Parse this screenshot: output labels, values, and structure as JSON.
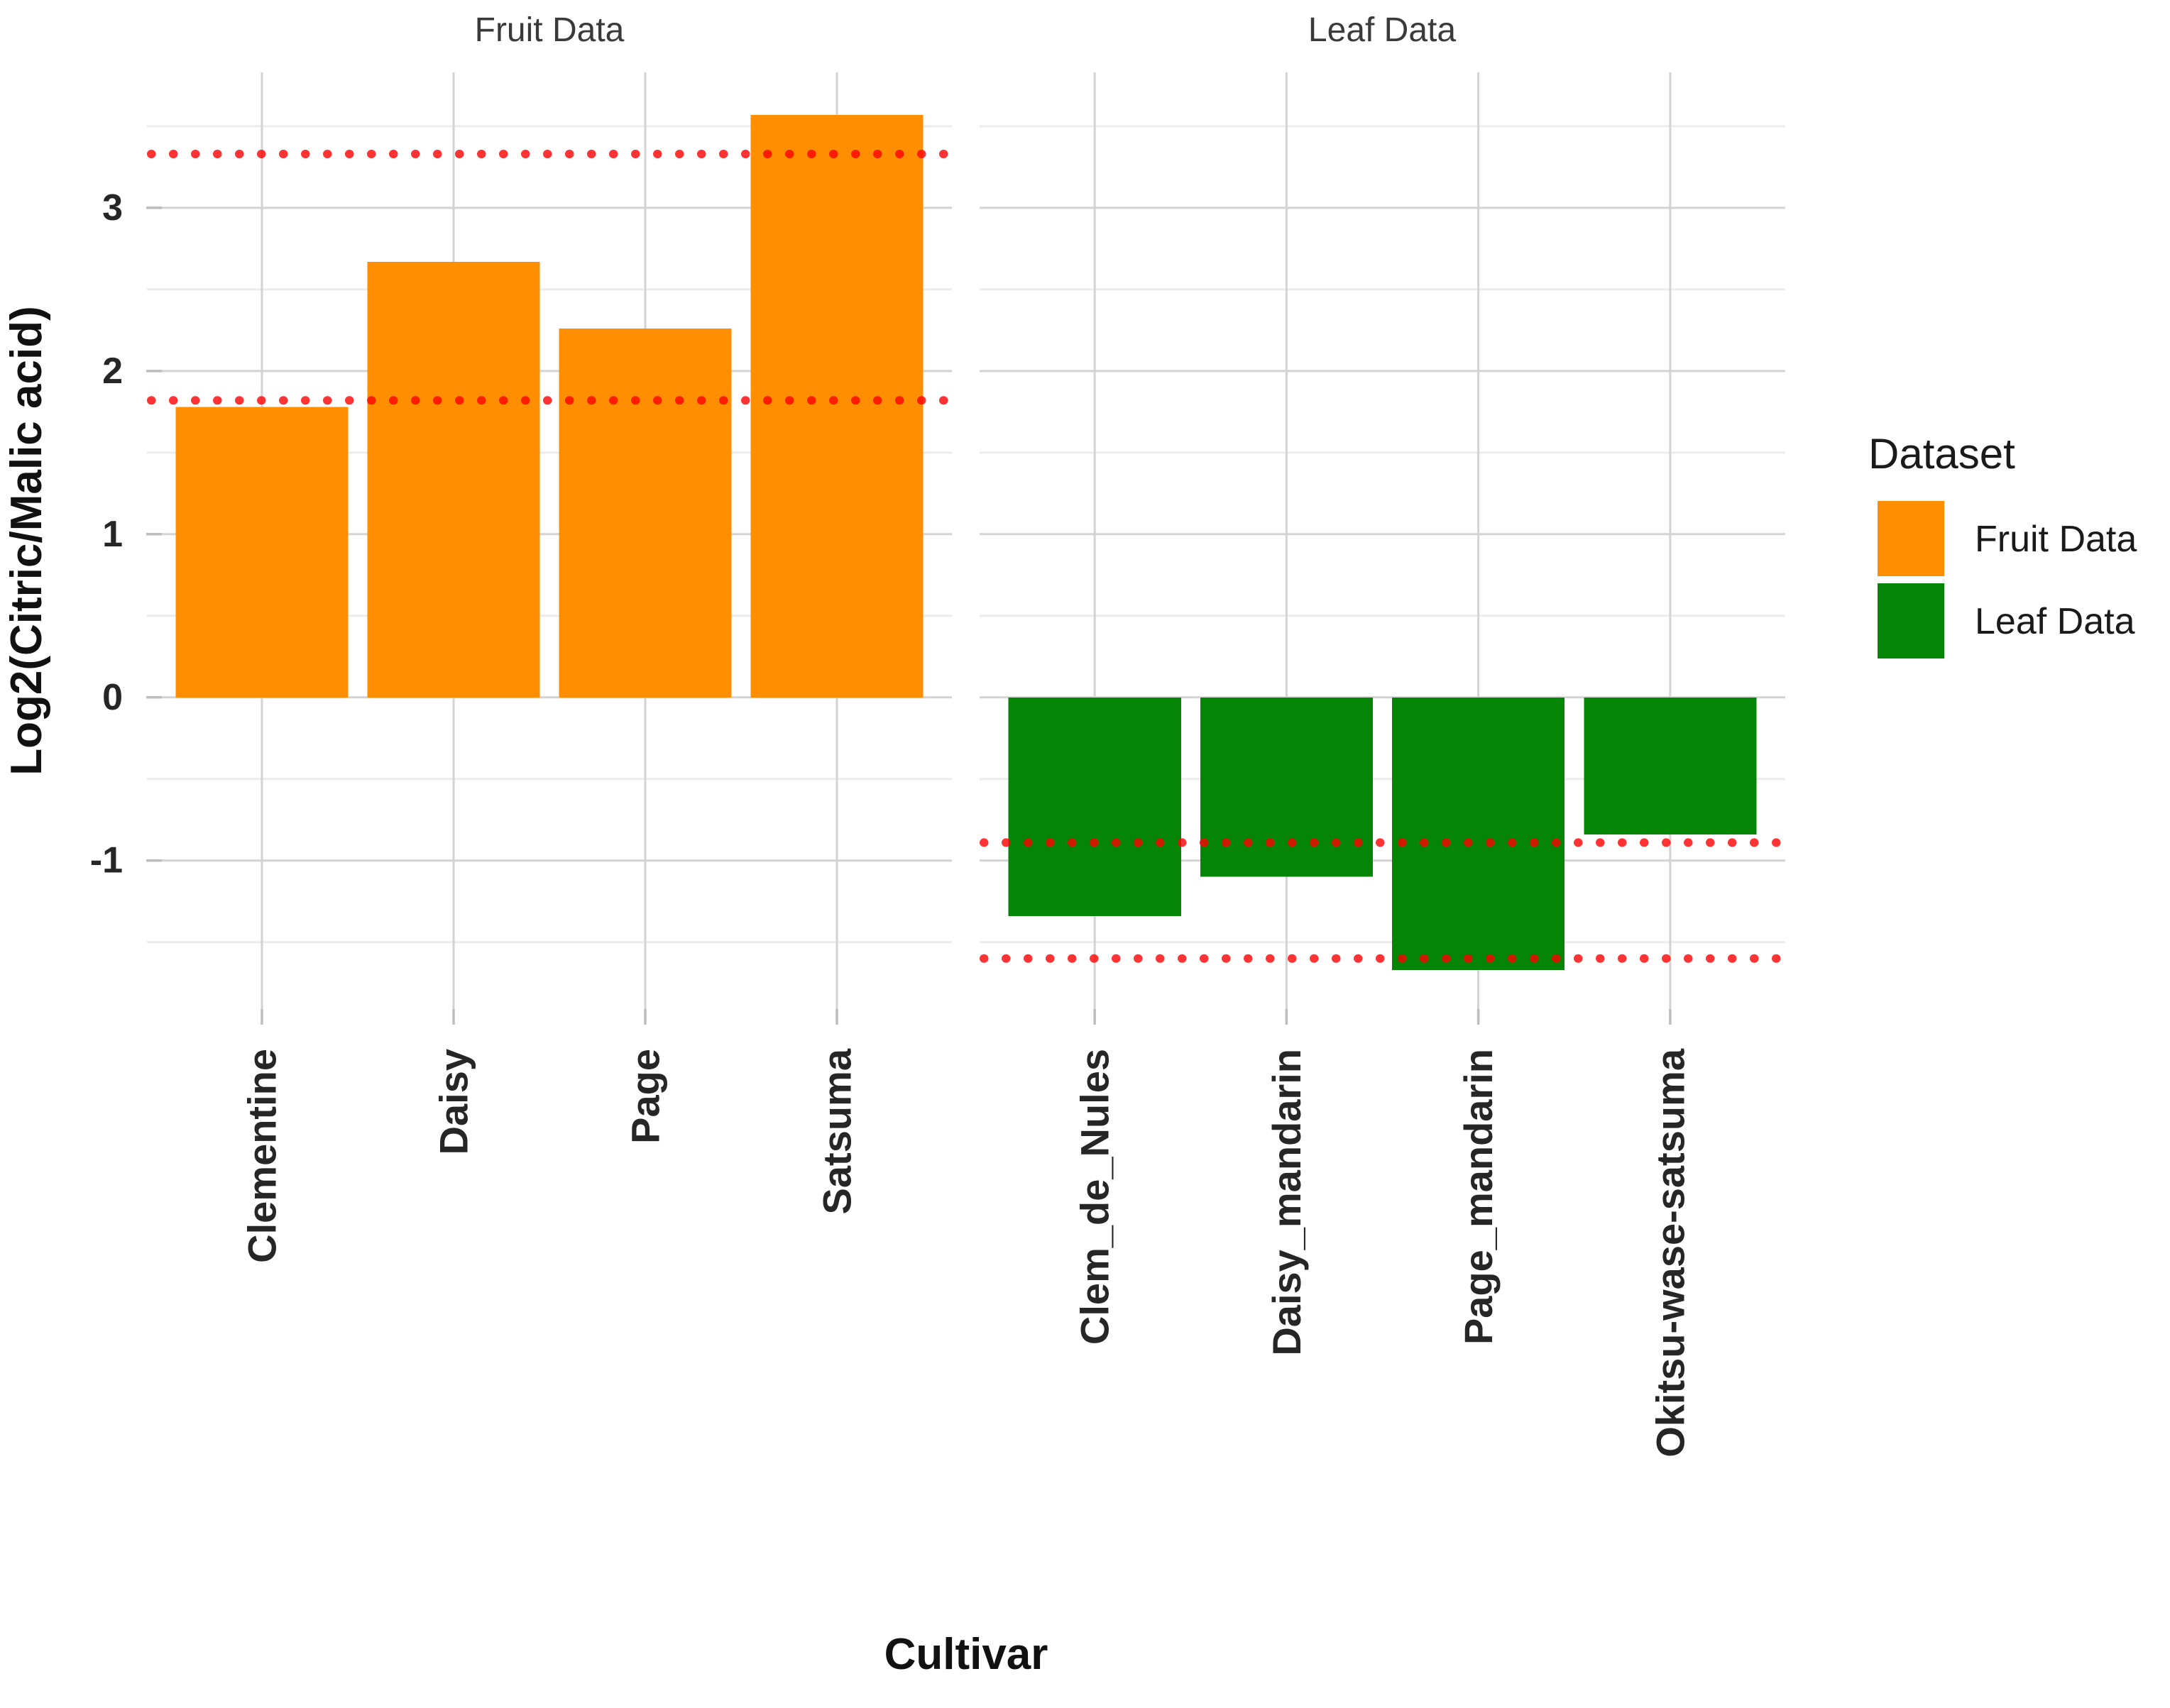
{
  "figure": {
    "y_axis_title": "Log2(Citric/Malic acid)",
    "x_axis_title": "Cultivar",
    "facet_titles": [
      "Fruit Data",
      "Leaf Data"
    ],
    "legend": {
      "title": "Dataset",
      "items": [
        {
          "label": "Fruit Data",
          "color": "#FF8F00"
        },
        {
          "label": "Leaf Data",
          "color": "#058505"
        }
      ]
    }
  },
  "chart_data": {
    "type": "bar",
    "title": "",
    "xlabel": "Cultivar",
    "ylabel": "Log2(Citric/Malic acid)",
    "ylim": [
      -1.91,
      3.83
    ],
    "y_major_ticks": [
      3,
      2,
      1,
      0,
      -1
    ],
    "y_minor_ticks": [
      3.5,
      2.5,
      1.5,
      0.5,
      -0.5,
      -1.5
    ],
    "grid": "on",
    "legend_position": "right",
    "background": "#ffffff",
    "major_grid_color": "#d3d3d3",
    "minor_grid_color": "#ececec",
    "tick_mark_color": "#bdbdbd",
    "tick_label_color": "#262626",
    "ref_line_color": "#FF0000",
    "ref_line_style": "dotted",
    "facets": [
      {
        "label": "Fruit Data",
        "color": "#FF8F00",
        "categories": [
          "Clementine",
          "Daisy",
          "Page",
          "Satsuma"
        ],
        "values": [
          1.78,
          2.67,
          2.26,
          3.57
        ],
        "ref_lines": [
          3.33,
          1.82
        ]
      },
      {
        "label": "Leaf Data",
        "color": "#058505",
        "categories": [
          "Clem_de_Nules",
          "Daisy_mandarin",
          "Page_mandarin",
          "Okitsu-wase-satsuma"
        ],
        "values": [
          -1.34,
          -1.1,
          -1.67,
          -0.84
        ],
        "ref_lines": [
          -0.89,
          -1.6
        ]
      }
    ]
  }
}
